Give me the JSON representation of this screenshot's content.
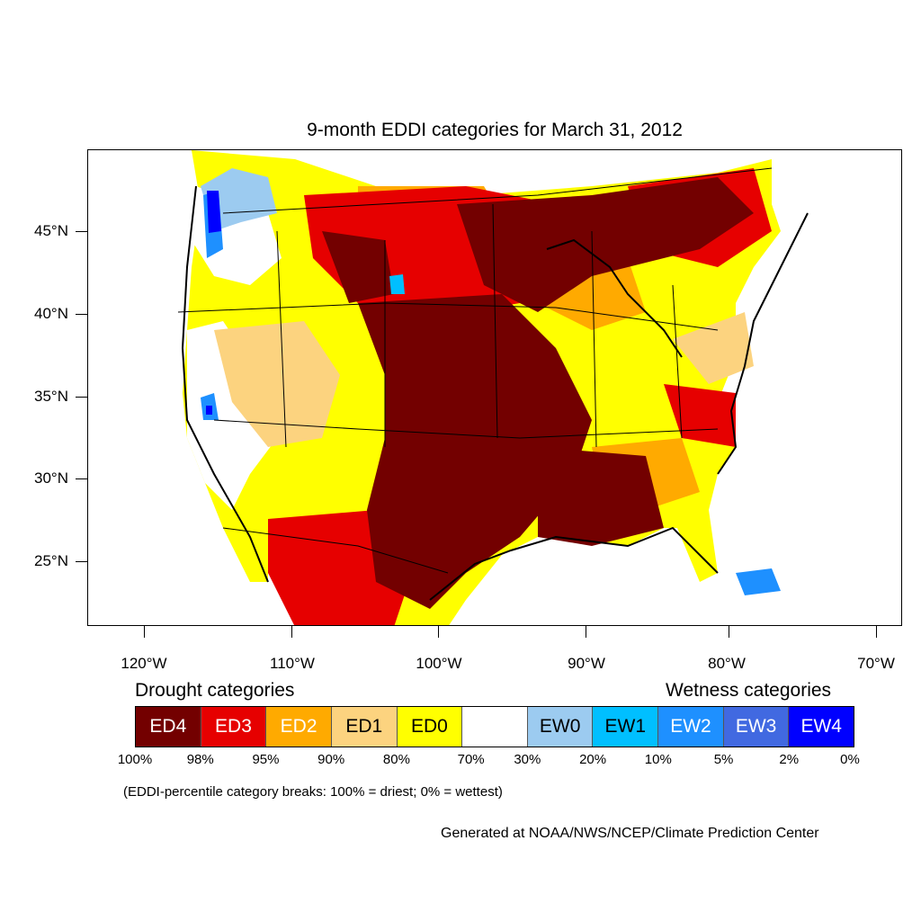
{
  "title": "9-month EDDI categories for March 31, 2012",
  "latitude_labels": [
    "45°N",
    "40°N",
    "35°N",
    "30°N",
    "25°N"
  ],
  "longitude_labels": [
    "120°W",
    "110°W",
    "100°W",
    "90°W",
    "80°W",
    "70°W"
  ],
  "legend": {
    "drought_heading": "Drought categories",
    "wetness_heading": "Wetness categories",
    "categories": [
      {
        "label": "ED4",
        "color": "#730000",
        "text_color": "#ffffff"
      },
      {
        "label": "ED3",
        "color": "#e60000",
        "text_color": "#ffffff"
      },
      {
        "label": "ED2",
        "color": "#ffaa00",
        "text_color": "#ffffff"
      },
      {
        "label": "ED1",
        "color": "#fcd37f",
        "text_color": "#000000"
      },
      {
        "label": "ED0",
        "color": "#ffff00",
        "text_color": "#000000"
      },
      {
        "label": "",
        "color": "#ffffff",
        "text_color": "#000000"
      },
      {
        "label": "EW0",
        "color": "#9ccbf0",
        "text_color": "#000000"
      },
      {
        "label": "EW1",
        "color": "#00bfff",
        "text_color": "#000000"
      },
      {
        "label": "EW2",
        "color": "#1e90ff",
        "text_color": "#ffffff"
      },
      {
        "label": "EW3",
        "color": "#4169e1",
        "text_color": "#ffffff"
      },
      {
        "label": "EW4",
        "color": "#0000ff",
        "text_color": "#ffffff"
      }
    ],
    "breaks": [
      "100%",
      "98%",
      "95%",
      "90%",
      "80%",
      "70%",
      "30%",
      "20%",
      "10%",
      "5%",
      "2%",
      "0%"
    ],
    "note": "(EDDI-percentile category breaks: 100% = driest; 0% = wettest)"
  },
  "credit": "Generated at NOAA/NWS/NCEP/Climate Prediction Center"
}
